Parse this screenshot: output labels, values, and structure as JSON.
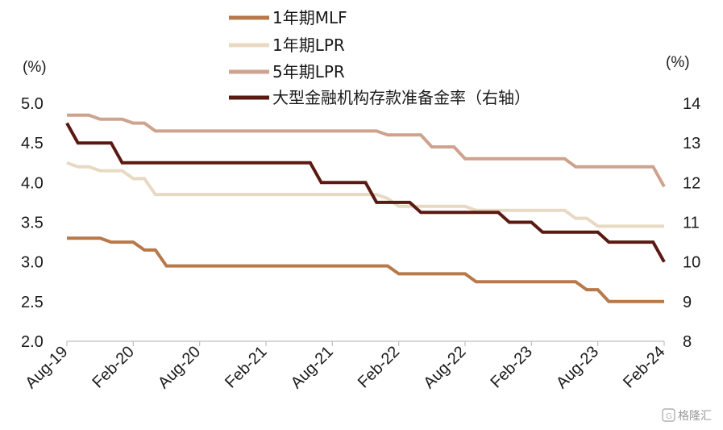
{
  "chart_data": {
    "type": "line",
    "left_axis": {
      "unit": "(%)",
      "ylim": [
        2.0,
        5.0
      ],
      "ticks": [
        "2.0",
        "2.5",
        "3.0",
        "3.5",
        "4.0",
        "4.5",
        "5.0"
      ]
    },
    "right_axis": {
      "unit": "(%)",
      "ylim": [
        8,
        14
      ],
      "ticks": [
        "8",
        "9",
        "10",
        "11",
        "12",
        "13",
        "14"
      ]
    },
    "x_ticks": [
      "Aug-19",
      "Feb-20",
      "Aug-20",
      "Feb-21",
      "Aug-21",
      "Feb-22",
      "Aug-22",
      "Feb-23",
      "Aug-23",
      "Feb-24"
    ],
    "x_range": [
      "2019-08",
      "2024-02"
    ],
    "legend_position": "top",
    "series": [
      {
        "name": "1年期MLF",
        "axis": "left",
        "color": "#B8794A",
        "points": [
          [
            "2019-08",
            3.3
          ],
          [
            "2019-11",
            3.3
          ],
          [
            "2019-12",
            3.25
          ],
          [
            "2020-02",
            3.25
          ],
          [
            "2020-03",
            3.15
          ],
          [
            "2020-04",
            3.15
          ],
          [
            "2020-05",
            2.95
          ],
          [
            "2022-01",
            2.95
          ],
          [
            "2022-02",
            2.85
          ],
          [
            "2022-08",
            2.85
          ],
          [
            "2022-09",
            2.75
          ],
          [
            "2023-06",
            2.75
          ],
          [
            "2023-07",
            2.65
          ],
          [
            "2023-08",
            2.65
          ],
          [
            "2023-09",
            2.5
          ],
          [
            "2024-02",
            2.5
          ]
        ]
      },
      {
        "name": "1年期LPR",
        "axis": "left",
        "color": "#E8D9C2",
        "points": [
          [
            "2019-08",
            4.25
          ],
          [
            "2019-09",
            4.2
          ],
          [
            "2019-10",
            4.2
          ],
          [
            "2019-11",
            4.15
          ],
          [
            "2020-01",
            4.15
          ],
          [
            "2020-02",
            4.05
          ],
          [
            "2020-03",
            4.05
          ],
          [
            "2020-04",
            3.85
          ],
          [
            "2021-12",
            3.85
          ],
          [
            "2022-01",
            3.8
          ],
          [
            "2022-02",
            3.7
          ],
          [
            "2022-08",
            3.7
          ],
          [
            "2022-09",
            3.65
          ],
          [
            "2023-05",
            3.65
          ],
          [
            "2023-06",
            3.55
          ],
          [
            "2023-07",
            3.55
          ],
          [
            "2023-08",
            3.45
          ],
          [
            "2024-02",
            3.45
          ]
        ]
      },
      {
        "name": "5年期LPR",
        "axis": "left",
        "color": "#CFA28D",
        "points": [
          [
            "2019-08",
            4.85
          ],
          [
            "2019-10",
            4.85
          ],
          [
            "2019-11",
            4.8
          ],
          [
            "2020-01",
            4.8
          ],
          [
            "2020-02",
            4.75
          ],
          [
            "2020-03",
            4.75
          ],
          [
            "2020-04",
            4.65
          ],
          [
            "2021-12",
            4.65
          ],
          [
            "2022-01",
            4.6
          ],
          [
            "2022-04",
            4.6
          ],
          [
            "2022-05",
            4.45
          ],
          [
            "2022-07",
            4.45
          ],
          [
            "2022-08",
            4.3
          ],
          [
            "2023-05",
            4.3
          ],
          [
            "2023-06",
            4.2
          ],
          [
            "2024-01",
            4.2
          ],
          [
            "2024-02",
            3.95
          ]
        ]
      },
      {
        "name": "大型金融机构存款准备金率（右轴）",
        "axis": "right",
        "color": "#5A1A12",
        "points": [
          [
            "2019-08",
            13.5
          ],
          [
            "2019-09",
            13.0
          ],
          [
            "2019-12",
            13.0
          ],
          [
            "2020-01",
            12.5
          ],
          [
            "2021-06",
            12.5
          ],
          [
            "2021-07",
            12.0
          ],
          [
            "2021-11",
            12.0
          ],
          [
            "2021-12",
            11.5
          ],
          [
            "2022-03",
            11.5
          ],
          [
            "2022-04",
            11.25
          ],
          [
            "2022-11",
            11.25
          ],
          [
            "2022-12",
            11.0
          ],
          [
            "2023-02",
            11.0
          ],
          [
            "2023-03",
            10.75
          ],
          [
            "2023-08",
            10.75
          ],
          [
            "2023-09",
            10.5
          ],
          [
            "2024-01",
            10.5
          ],
          [
            "2024-02",
            10.0
          ]
        ]
      }
    ]
  },
  "watermark": {
    "text": "格隆汇"
  }
}
